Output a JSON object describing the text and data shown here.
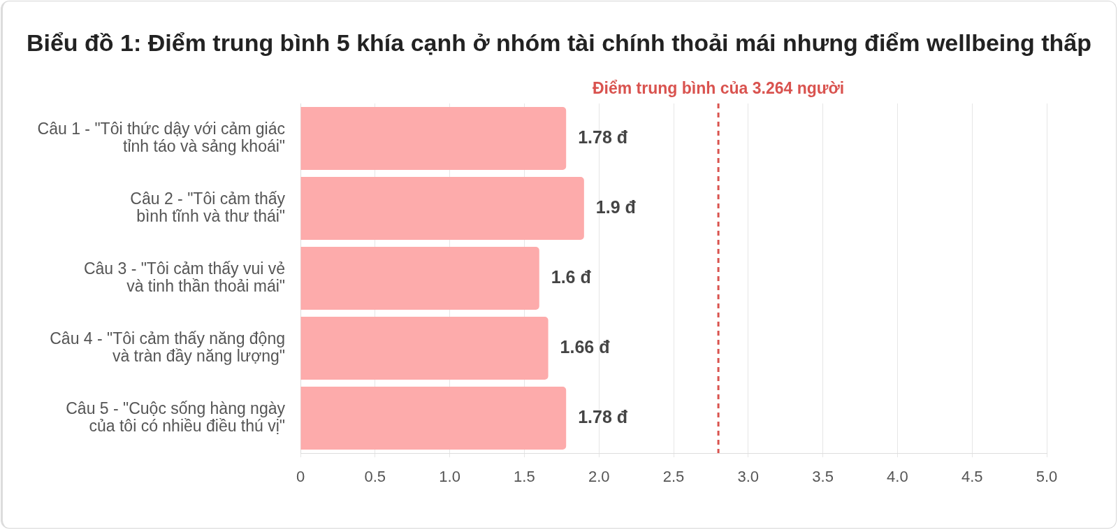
{
  "chart_data": {
    "type": "bar",
    "orientation": "horizontal",
    "title": "Biểu đồ 1: Điểm trung bình 5 khía cạnh ở nhóm tài chính thoải mái nhưng điểm wellbeing thấp",
    "categories": [
      "Câu 1 - \"Tôi thức dậy với cảm giác\ntỉnh táo và sảng khoái\"",
      "Câu 2 - \"Tôi cảm thấy\nbình tĩnh và thư thái\"",
      "Câu 3 - \"Tôi cảm thấy vui vẻ\nvà tinh thần thoải mái\"",
      "Câu 4 - \"Tôi cảm thấy năng động\nvà tràn đầy năng lượng\"",
      "Câu 5 - \"Cuộc sống hàng ngày\ncủa tôi có nhiều điều thú vị\""
    ],
    "values": [
      1.78,
      1.9,
      1.6,
      1.66,
      1.78
    ],
    "color": "#fdabab",
    "value_labels": [
      "1.78 đ",
      "1.9 đ",
      "1.6 đ",
      "1.66 đ",
      "1.78 đ"
    ],
    "xlim": [
      0,
      5
    ],
    "xticks": [
      0,
      0.5,
      {
        "value": 1,
        "label": "1.0"
      },
      1.5,
      {
        "value": 2,
        "label": "2.0"
      },
      2.5,
      {
        "value": 3,
        "label": "3.0"
      },
      3.5,
      {
        "value": 4,
        "label": "4.0"
      },
      4.5,
      {
        "value": 5,
        "label": "5.0"
      }
    ],
    "ref_lines": [
      {
        "axis": "x",
        "value": 2.8,
        "label": "Điểm trung bình của 3.264 người",
        "color": "#d9534f",
        "line_style": "dashed"
      }
    ],
    "grid": "x",
    "legend": false
  }
}
